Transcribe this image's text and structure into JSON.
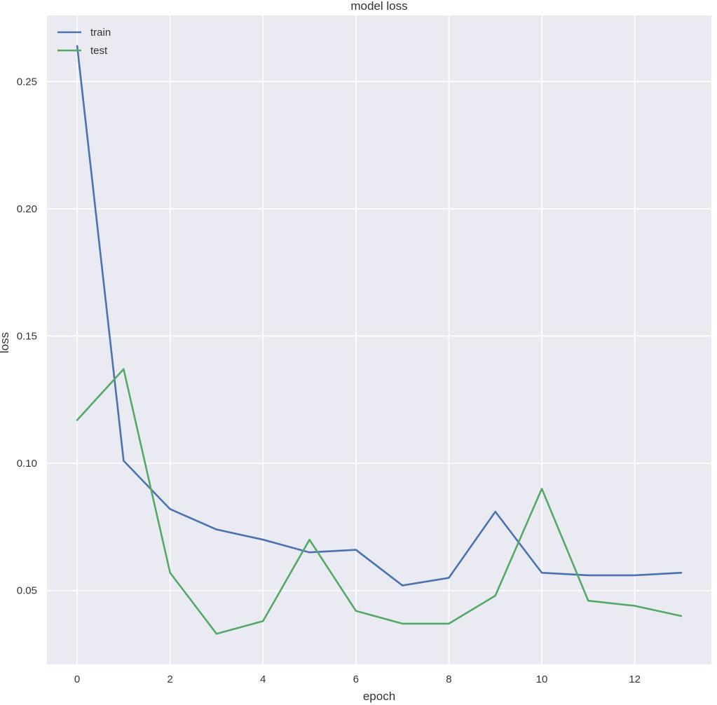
{
  "chart_data": {
    "type": "line",
    "title": "model loss",
    "xlabel": "epoch",
    "ylabel": "loss",
    "xlim": [
      -0.65,
      13.65
    ],
    "ylim": [
      0.021,
      0.276
    ],
    "x_ticks": [
      0,
      2,
      4,
      6,
      8,
      10,
      12
    ],
    "x_tick_labels": [
      "0",
      "2",
      "4",
      "6",
      "8",
      "10",
      "12"
    ],
    "y_ticks": [
      0.05,
      0.1,
      0.15,
      0.2,
      0.25
    ],
    "y_tick_labels": [
      "0.05",
      "0.10",
      "0.15",
      "0.20",
      "0.25"
    ],
    "grid": true,
    "legend_position": "top-left",
    "x": [
      0,
      1,
      2,
      3,
      4,
      5,
      6,
      7,
      8,
      9,
      10,
      11,
      12,
      13
    ],
    "series": [
      {
        "name": "train",
        "color": "#4c72b0",
        "values": [
          0.264,
          0.101,
          0.082,
          0.074,
          0.07,
          0.065,
          0.066,
          0.052,
          0.055,
          0.081,
          0.057,
          0.056,
          0.056,
          0.057
        ]
      },
      {
        "name": "test",
        "color": "#55a868",
        "values": [
          0.117,
          0.137,
          0.057,
          0.033,
          0.038,
          0.07,
          0.042,
          0.037,
          0.037,
          0.048,
          0.09,
          0.046,
          0.044,
          0.04
        ]
      }
    ]
  }
}
